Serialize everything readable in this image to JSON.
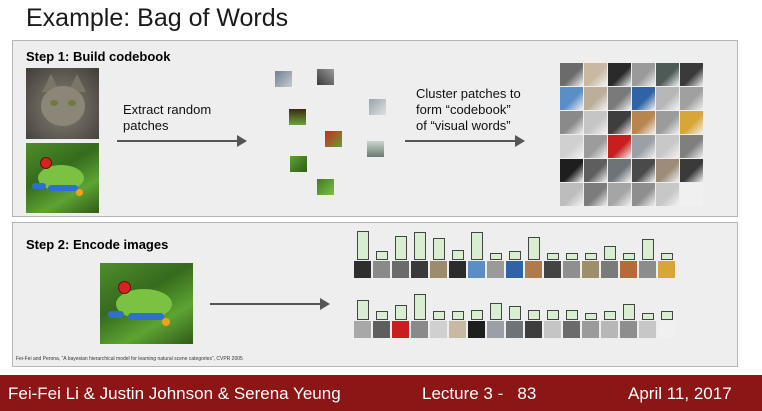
{
  "slide": {
    "title": "Example: Bag of Words"
  },
  "step1": {
    "heading": "Step 1: Build codebook",
    "extract_label": "Extract random\npatches",
    "cluster_label": "Cluster patches to\nform “codebook”\nof “visual words”"
  },
  "step2": {
    "heading": "Step 2: Encode images"
  },
  "citation": "Fei-Fei and Perona, “A bayesian hierarchical model for learning natural scene categories”, CVPR 2005",
  "footer": {
    "authors": "Fei-Fei Li & Justin Johnson & Serena Yeung",
    "lecture": "Lecture 3 -   83",
    "date": "April 11, 2017"
  },
  "colors": {
    "footer_bg": "#8c1515",
    "panel_bg": "#eeeeee",
    "bar_fill": "#d7eed1"
  },
  "codebook_colors": [
    "#6b6b6b",
    "#c9b9a3",
    "#2a2a2a",
    "#9a9a9a",
    "#4d5a55",
    "#3a3a3a",
    "#5b8ec6",
    "#bcae9a",
    "#7a7a7a",
    "#2f63a6",
    "#b7b7b7",
    "#a0a0a0",
    "#8a8a8a",
    "#c5c5c5",
    "#3e3e3e",
    "#b7864e",
    "#9b9b9b",
    "#d8a637",
    "#d0d0d0",
    "#9c9c9c",
    "#c81e1e",
    "#9aa0a6",
    "#c8c8c8",
    "#7f7f7f",
    "#1e1e1e",
    "#5e5e5e",
    "#6e7378",
    "#4a4a4a",
    "#9d8d78",
    "#3a3a3a",
    "#bdbdbd",
    "#7c7c7c",
    "#a5a5a5",
    "#8e8e8e",
    "#c7c7c7",
    "#f0f0f0"
  ],
  "histogram_1": {
    "levels": [
      0.85,
      0.27,
      0.7,
      0.82,
      0.65,
      0.3,
      0.82,
      0.22,
      0.27,
      0.67,
      0.22,
      0.22,
      0.22,
      0.4,
      0.22,
      0.62,
      0.22
    ],
    "swatches": [
      "#2e2e2e",
      "#8a8a8a",
      "#6b6b6b",
      "#3a3a3a",
      "#9e8a6c",
      "#2c2c2c",
      "#5b8ec6",
      "#9a9a9a",
      "#2f63a6",
      "#b07a4f",
      "#444444",
      "#8f8f8f",
      "#9e8f6a",
      "#7a7a7a",
      "#b56a3c",
      "#8c8c8c",
      "#d8a637"
    ]
  },
  "histogram_2": {
    "levels": [
      0.6,
      0.27,
      0.45,
      0.75,
      0.27,
      0.25,
      0.3,
      0.5,
      0.4,
      0.3,
      0.3,
      0.3,
      0.22,
      0.25,
      0.48,
      0.22,
      0.25
    ],
    "swatches": [
      "#a8a8a8",
      "#5e5e5e",
      "#c81e1e",
      "#8a8a8a",
      "#d0d0d0",
      "#c9b9a3",
      "#1e1e1e",
      "#9aa0a6",
      "#6e7378",
      "#3e3e3e",
      "#c5c5c5",
      "#6b6b6b",
      "#9b9b9b",
      "#b7b7b7",
      "#8e8e8e",
      "#c7c7c7",
      "#f0f0f0"
    ]
  }
}
